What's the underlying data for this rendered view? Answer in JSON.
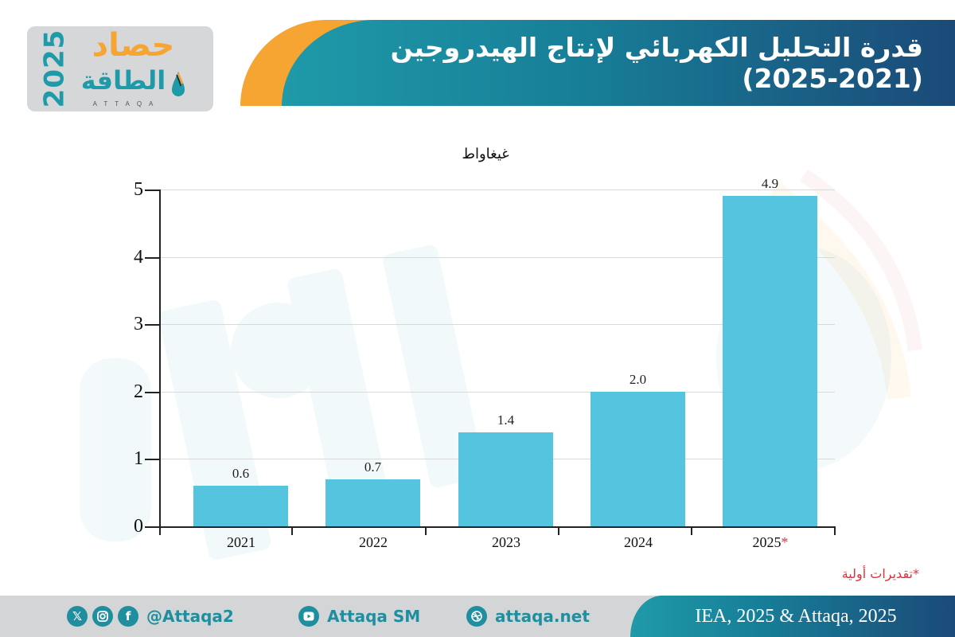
{
  "logo": {
    "year": "2025",
    "line1": "حصاد",
    "line2": "الطاقة",
    "sub": "ATTAQA"
  },
  "header": {
    "title": "قدرة التحليل الكهربائي لإنتاج الهيدروجين (2021-2025)"
  },
  "colors": {
    "bar": "#55c4de",
    "header_teal": "#1f9aa9",
    "header_navy": "#1b4a78",
    "accent_orange": "#f6a532",
    "note_red": "#e0303a",
    "footer_gray": "#d3d5d6"
  },
  "chart_data": {
    "type": "bar",
    "title": "قدرة التحليل الكهربائي لإنتاج الهيدروجين (2021-2025)",
    "unit_label": "غيغاواط",
    "xlabel": "",
    "ylabel": "غيغاواط",
    "categories": [
      "2021",
      "2022",
      "2023",
      "2024",
      "2025"
    ],
    "category_markers": [
      "",
      "",
      "",
      "",
      "*"
    ],
    "values": [
      0.6,
      0.7,
      1.4,
      2.0,
      4.9
    ],
    "value_labels": [
      "0.6",
      "0.7",
      "1.4",
      "2.0",
      "4.9"
    ],
    "ylim": [
      0,
      5
    ],
    "yticks": [
      "0",
      "1",
      "2",
      "3",
      "4",
      "5"
    ],
    "grid": true,
    "legend": null,
    "annotation": "*تقديرات أولية"
  },
  "footer": {
    "social_handle": "@Attaqa2",
    "youtube": "Attaqa SM",
    "website": "attaqa.net",
    "source": "IEA, 2025 & Attaqa, 2025",
    "icons": [
      "x-icon",
      "instagram-icon",
      "facebook-icon",
      "youtube-icon",
      "globe-icon"
    ]
  }
}
